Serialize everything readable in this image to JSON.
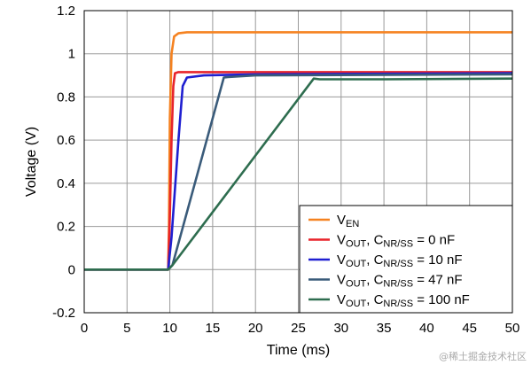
{
  "chart_data": {
    "type": "line",
    "xlabel": "Time (ms)",
    "ylabel": "Voltage (V)",
    "xlim": [
      0,
      50
    ],
    "ylim": [
      -0.2,
      1.2
    ],
    "x_ticks": [
      0,
      5,
      10,
      15,
      20,
      25,
      30,
      35,
      40,
      45,
      50
    ],
    "y_ticks": [
      -0.2,
      0,
      0.2,
      0.4,
      0.6,
      0.8,
      1,
      1.2
    ],
    "y_tick_labels": [
      "-0.2",
      "0",
      "0.2",
      "0.4",
      "0.6",
      "0.8",
      "1",
      "1.2"
    ],
    "grid": true,
    "legend_position": "bottom-right",
    "series": [
      {
        "name": {
          "main": "V",
          "sub": "EN",
          "rest": ""
        },
        "color": "#f58220",
        "x": [
          0,
          9.8,
          9.9,
          10.0,
          10.2,
          10.5,
          11,
          12,
          50
        ],
        "y": [
          0,
          0,
          0.2,
          0.7,
          1.0,
          1.08,
          1.095,
          1.1,
          1.1
        ]
      },
      {
        "name": {
          "main": "V",
          "sub": "OUT",
          "rest": ", C",
          "sub2": "NR/SS",
          "rest2": " = 0 nF"
        },
        "color": "#e8242b",
        "x": [
          0,
          9.8,
          10.0,
          10.2,
          10.4,
          10.6,
          11,
          50
        ],
        "y": [
          0,
          0,
          0.25,
          0.6,
          0.85,
          0.91,
          0.915,
          0.915
        ]
      },
      {
        "name": {
          "main": "V",
          "sub": "OUT",
          "rest": ", C",
          "sub2": "NR/SS",
          "rest2": " = 10 nF"
        },
        "color": "#1f1fd1",
        "x": [
          0,
          9.8,
          10.2,
          11.0,
          11.5,
          12,
          14,
          20,
          50
        ],
        "y": [
          0,
          0,
          0.15,
          0.6,
          0.85,
          0.89,
          0.9,
          0.905,
          0.91
        ]
      },
      {
        "name": {
          "main": "V",
          "sub": "OUT",
          "rest": ", C",
          "sub2": "NR/SS",
          "rest2": " = 47 nF"
        },
        "color": "#3a5b7a",
        "x": [
          0,
          9.8,
          10.3,
          16.3,
          16.8,
          20,
          50
        ],
        "y": [
          0,
          0,
          0.02,
          0.89,
          0.892,
          0.9,
          0.905
        ]
      },
      {
        "name": {
          "main": "V",
          "sub": "OUT",
          "rest": ", C",
          "sub2": "NR/SS",
          "rest2": " = 100 nF"
        },
        "color": "#2e6d4f",
        "x": [
          0,
          9.8,
          10.3,
          26.8,
          27.5,
          35,
          50
        ],
        "y": [
          0,
          0,
          0.02,
          0.885,
          0.882,
          0.882,
          0.885
        ]
      }
    ]
  },
  "watermark": "@稀土掘金技术社区"
}
